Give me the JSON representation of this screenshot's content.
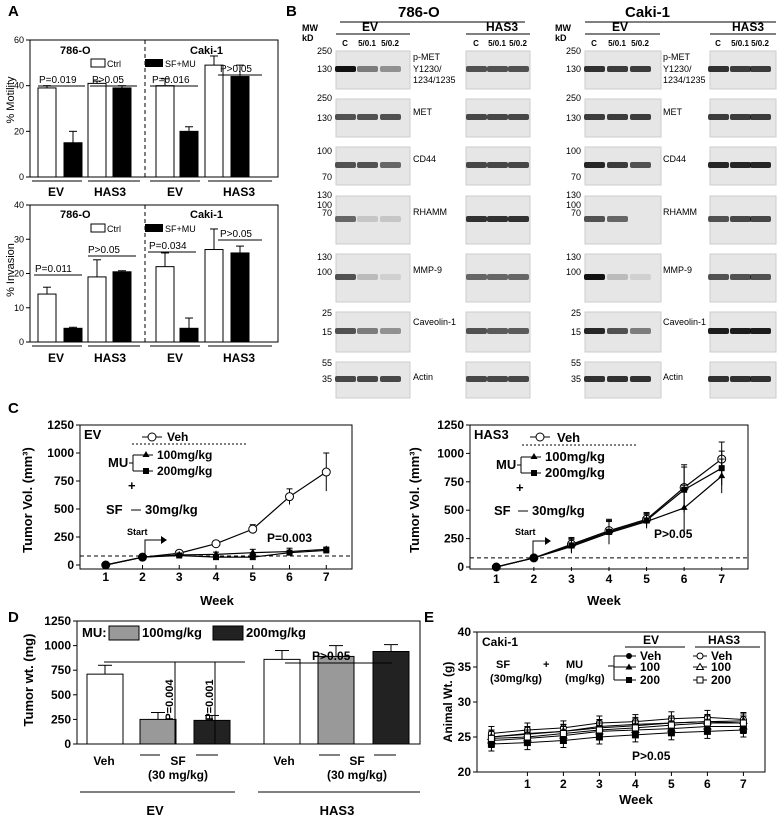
{
  "panels": {
    "A": "A",
    "B": "B",
    "C": "C",
    "D": "D",
    "E": "E"
  },
  "panelA": {
    "motility_ylabel": "% Motility",
    "invasion_ylabel": "% Invasion",
    "cell_786": "786-O",
    "cell_caki": "Caki-1",
    "legend_ctrl": "Ctrl",
    "legend_sfmu": "SF+MU",
    "ev": "EV",
    "has3": "HAS3",
    "motility_p": [
      "P=0.019",
      "P>0.05",
      "P=0.016",
      "P>0.05"
    ],
    "invasion_p": [
      "P=0.011",
      "P>0.05",
      "P=0.034",
      "P>0.05"
    ],
    "yticks_motility": [
      "60",
      "40",
      "20",
      "0"
    ],
    "yticks_invasion": [
      "40",
      "30",
      "20",
      "10",
      "0"
    ]
  },
  "panelB": {
    "title_786": "786-O",
    "title_caki": "Caki-1",
    "mw": "MW",
    "kd": "kD",
    "ev": "EV",
    "has3": "HAS3",
    "lanes": [
      "C",
      "5/0.1",
      "5/0.2"
    ],
    "pmet": [
      "p-MET",
      "Y1230/",
      "1234/1235"
    ],
    "proteins": [
      "MET",
      "CD44",
      "RHAMM",
      "MMP-9",
      "Caveolin-1",
      "Actin"
    ],
    "mw_786": [
      "250",
      "130",
      "250",
      "130",
      "100",
      "70",
      "130",
      "100",
      "70",
      "130",
      "100",
      "25",
      "15",
      "55",
      "35"
    ],
    "mw_caki": [
      "250",
      "130",
      "250",
      "130",
      "100",
      "70",
      "130",
      "100",
      "70",
      "130",
      "100",
      "25",
      "15",
      "55",
      "35"
    ]
  },
  "panelC": {
    "ylabel": "Tumor Vol. (mm³)",
    "xlabel": "Week",
    "ev": "EV",
    "has3": "HAS3",
    "veh": "Veh",
    "mu": "MU",
    "plus": "+",
    "dose100": "100mg/kg",
    "dose200": "200mg/kg",
    "sf": "SF",
    "sfdose": "30mg/kg",
    "start": "Start",
    "p_ev": "P=0.003",
    "p_has3": "P>0.05",
    "yticks": [
      "1250",
      "1000",
      "750",
      "500",
      "250",
      "0"
    ],
    "xticks": [
      "1",
      "2",
      "3",
      "4",
      "5",
      "6",
      "7"
    ]
  },
  "panelD": {
    "ylabel": "Tumor wt. (mg)",
    "mu": "MU:",
    "dose100": "100mg/kg",
    "dose200": "200mg/kg",
    "veh": "Veh",
    "sf": "SF",
    "sfdose": "(30 mg/kg)",
    "ev": "EV",
    "has3": "HAS3",
    "p_ev": [
      "P=0.004",
      "P=0.001"
    ],
    "p_has3": "P>0.05",
    "yticks": [
      "1250",
      "1000",
      "750",
      "500",
      "250",
      "0"
    ]
  },
  "panelE": {
    "title": "Caki-1",
    "ylabel": "Animal Wt. (g)",
    "xlabel": "Week",
    "ev": "EV",
    "has3": "HAS3",
    "sf": "SF",
    "sfdose": "(30mg/kg)",
    "plus": "+",
    "mu": "MU",
    "mudose": "(mg/kg)",
    "veh": "Veh",
    "d100": "100",
    "d200": "200",
    "p": "P>0.05",
    "yticks": [
      "40",
      "35",
      "30",
      "25",
      "20"
    ],
    "xticks": [
      "1",
      "2",
      "3",
      "4",
      "5",
      "6",
      "7"
    ]
  },
  "chart_data": [
    {
      "type": "bar",
      "title": "786-O / Caki-1",
      "ylabel": "% Motility",
      "categories": [
        "786-O EV",
        "786-O HAS3",
        "Caki-1 EV",
        "Caki-1 HAS3"
      ],
      "series": [
        {
          "name": "Ctrl",
          "values": [
            39,
            41,
            40,
            49
          ],
          "errors": [
            1,
            1,
            3,
            4
          ]
        },
        {
          "name": "SF+MU",
          "values": [
            15,
            39,
            20,
            44
          ],
          "errors": [
            5,
            1,
            2,
            5
          ]
        }
      ],
      "ylim": [
        0,
        60
      ]
    },
    {
      "type": "bar",
      "title": "786-O / Caki-1",
      "ylabel": "% Invasion",
      "categories": [
        "786-O EV",
        "786-O HAS3",
        "Caki-1 EV",
        "Caki-1 HAS3"
      ],
      "series": [
        {
          "name": "Ctrl",
          "values": [
            14,
            19,
            22,
            27
          ],
          "errors": [
            2,
            5,
            4,
            6
          ]
        },
        {
          "name": "SF+MU",
          "values": [
            4,
            20.5,
            4,
            26
          ],
          "errors": [
            0.3,
            0.3,
            3,
            2
          ]
        }
      ],
      "ylim": [
        0,
        40
      ]
    },
    {
      "type": "line",
      "title": "EV",
      "xlabel": "Week",
      "ylabel": "Tumor Vol. (mm³)",
      "x": [
        1,
        2,
        3,
        4,
        5,
        6,
        7
      ],
      "series": [
        {
          "name": "Veh",
          "values": [
            0,
            70,
            105,
            190,
            320,
            610,
            830
          ],
          "errors": [
            0,
            15,
            15,
            20,
            40,
            70,
            170
          ]
        },
        {
          "name": "100mg/kg",
          "values": [
            0,
            70,
            90,
            95,
            110,
            120,
            140
          ],
          "errors": [
            0,
            10,
            10,
            20,
            30,
            30,
            20
          ]
        },
        {
          "name": "200mg/kg",
          "values": [
            0,
            70,
            85,
            70,
            70,
            110,
            130
          ],
          "errors": [
            0,
            10,
            10,
            15,
            20,
            20,
            20
          ]
        }
      ],
      "ylim": [
        0,
        1250
      ]
    },
    {
      "type": "line",
      "title": "HAS3",
      "xlabel": "Week",
      "ylabel": "Tumor Vol. (mm³)",
      "x": [
        1,
        2,
        3,
        4,
        5,
        6,
        7
      ],
      "series": [
        {
          "name": "Veh",
          "values": [
            0,
            80,
            200,
            320,
            420,
            700,
            950
          ],
          "errors": [
            0,
            20,
            60,
            100,
            60,
            200,
            150
          ]
        },
        {
          "name": "100mg/kg",
          "values": [
            0,
            80,
            180,
            300,
            400,
            520,
            800
          ],
          "errors": [
            0,
            20,
            60,
            100,
            60,
            200,
            150
          ]
        },
        {
          "name": "200mg/kg",
          "values": [
            0,
            80,
            190,
            310,
            410,
            680,
            870
          ],
          "errors": [
            0,
            20,
            60,
            100,
            60,
            200,
            150
          ]
        }
      ],
      "ylim": [
        0,
        1250
      ]
    },
    {
      "type": "bar",
      "ylabel": "Tumor wt. (mg)",
      "categories": [
        "EV Veh",
        "EV SF 100mg/kg",
        "EV SF 200mg/kg",
        "HAS3 Veh",
        "HAS3 SF 100mg/kg",
        "HAS3 SF 200mg/kg"
      ],
      "values": [
        710,
        250,
        240,
        860,
        890,
        940
      ],
      "errors": [
        90,
        70,
        50,
        90,
        110,
        70
      ],
      "ylim": [
        0,
        1250
      ]
    },
    {
      "type": "line",
      "title": "Caki-1",
      "xlabel": "Week",
      "ylabel": "Animal Wt. (g)",
      "x": [
        0,
        1,
        2,
        3,
        4,
        5,
        6,
        7
      ],
      "series": [
        {
          "name": "EV Veh",
          "values": [
            25,
            25.5,
            25.8,
            26.5,
            26.8,
            27,
            27.2,
            27
          ]
        },
        {
          "name": "EV 100",
          "values": [
            24.5,
            24.8,
            25.2,
            25.8,
            26,
            26.2,
            26.5,
            26.5
          ]
        },
        {
          "name": "EV 200",
          "values": [
            24,
            24.2,
            24.5,
            25,
            25.3,
            25.6,
            25.8,
            26
          ]
        },
        {
          "name": "HAS3 Veh",
          "values": [
            25.5,
            26,
            26.3,
            27,
            27.2,
            27.6,
            27.8,
            27.5
          ]
        },
        {
          "name": "HAS3 100",
          "values": [
            25,
            25.4,
            25.8,
            26.3,
            26.6,
            27,
            27.2,
            27.3
          ]
        },
        {
          "name": "HAS3 200",
          "values": [
            24.8,
            25,
            25.5,
            26,
            26.3,
            26.7,
            27,
            27
          ]
        }
      ],
      "ylim": [
        20,
        40
      ]
    }
  ]
}
